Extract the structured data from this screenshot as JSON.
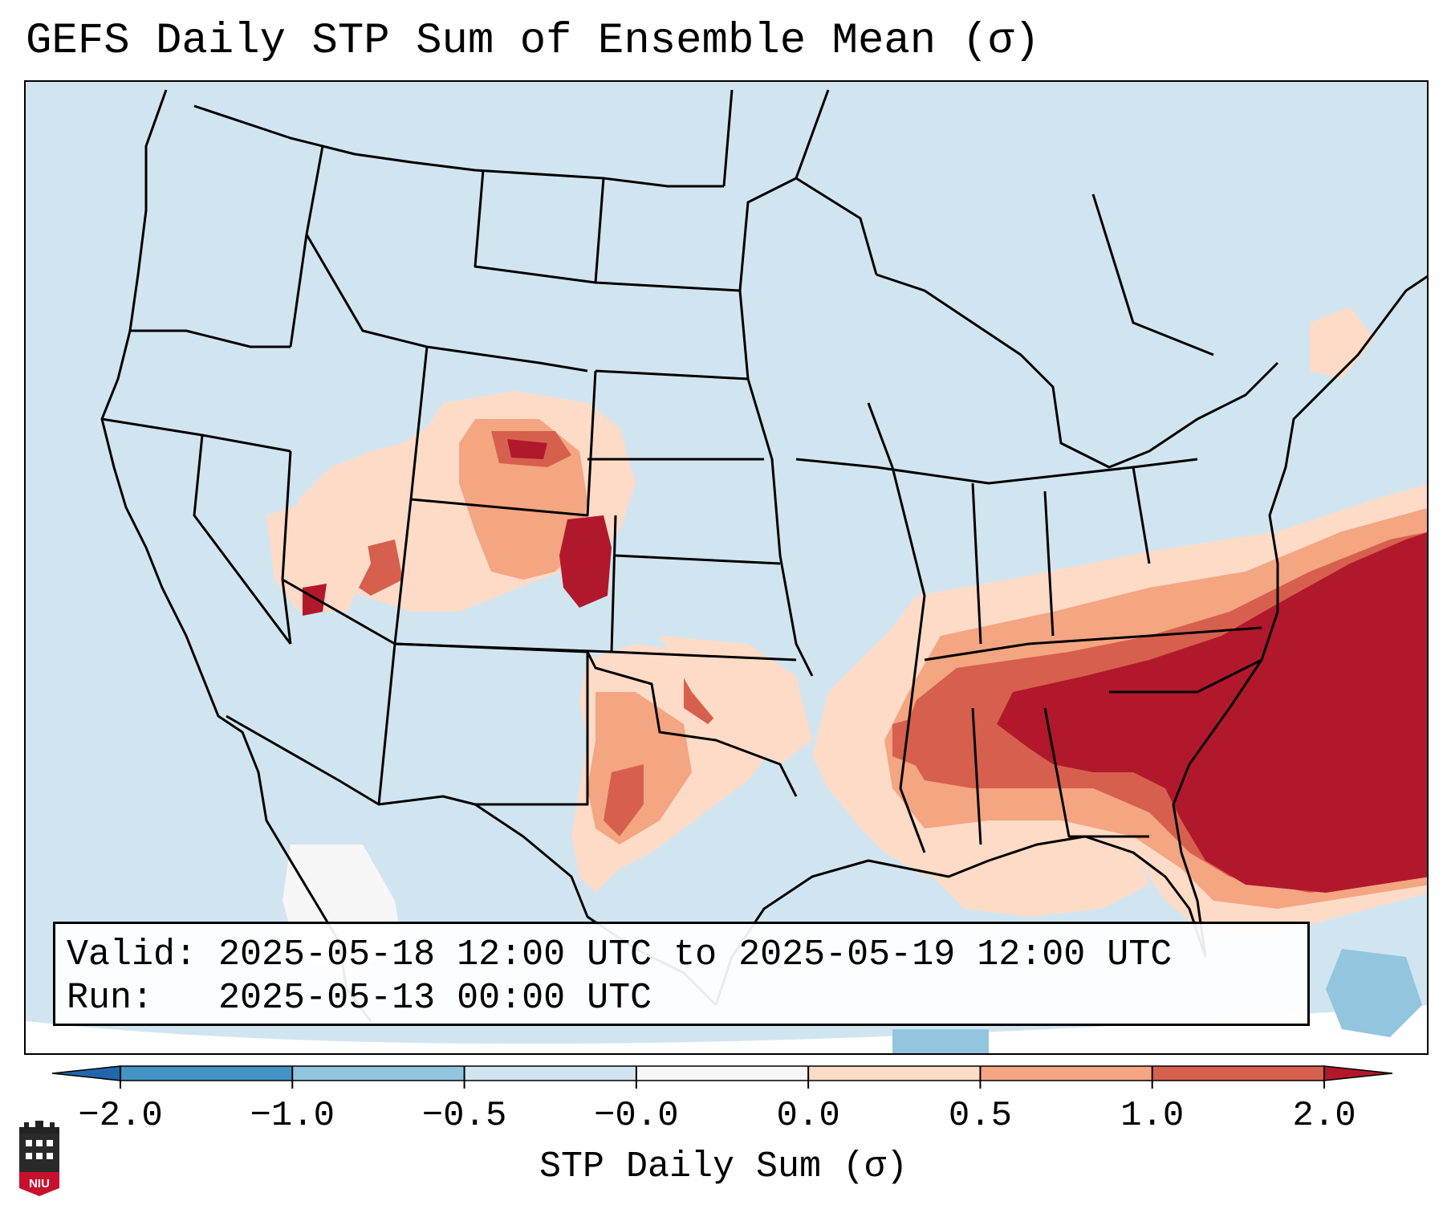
{
  "title": "GEFS Daily STP Sum of Ensemble Mean (σ)",
  "info": {
    "valid_label": "Valid:",
    "valid_value": "2025-05-18 12:00 UTC to 2025-05-19 12:00 UTC",
    "run_label": "Run:",
    "run_value": "2025-05-13 00:00 UTC"
  },
  "colorbar": {
    "label": "STP Daily Sum (σ)",
    "ticks": [
      "−2.0",
      "−1.0",
      "−0.5",
      "−0.0",
      "0.0",
      "0.5",
      "1.0",
      "2.0"
    ],
    "colors": [
      "#4393c3",
      "#92c5de",
      "#d1e5f0",
      "#f7f7f7",
      "#fddbc7",
      "#f4a582",
      "#d6604d",
      "#b2182b"
    ],
    "under_color": "#2166ac",
    "over_color": "#b2182b"
  },
  "map": {
    "background_color": "#d1e5f0",
    "legend_sigma_levels": {
      "light_positive": "#fddbc7",
      "medium_positive": "#f4a582",
      "strong_positive": "#d6604d",
      "extreme_positive": "#b2182b",
      "neutral": "#f7f7f7",
      "light_negative": "#92c5de"
    }
  },
  "logo": {
    "text": "NIU"
  }
}
